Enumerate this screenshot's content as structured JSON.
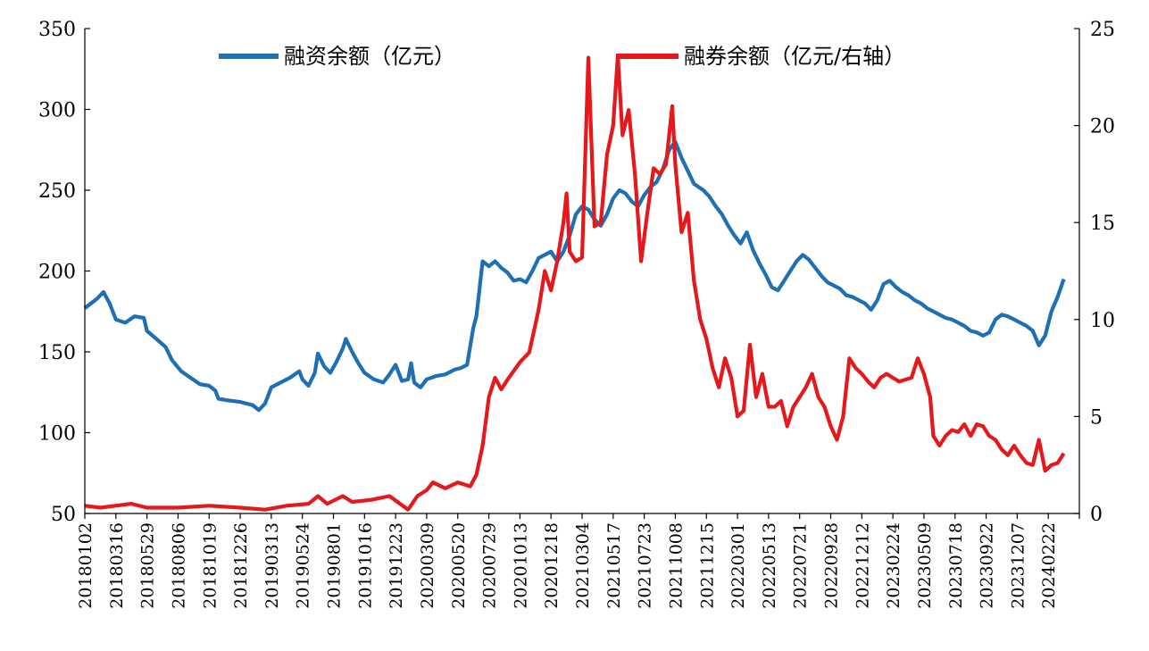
{
  "chart_data": {
    "type": "line",
    "title": "",
    "grid": false,
    "legend_position": "top",
    "y_left": {
      "min": 50,
      "max": 350,
      "ticks": [
        50,
        100,
        150,
        200,
        250,
        300,
        350
      ]
    },
    "y_right": {
      "min": 0,
      "max": 25,
      "ticks": [
        0,
        5,
        10,
        15,
        20,
        25
      ]
    },
    "x_tick_labels": [
      "20180102",
      "20180316",
      "20180529",
      "20180806",
      "20181019",
      "20181226",
      "20190313",
      "20190524",
      "20190801",
      "20191016",
      "20191223",
      "20200309",
      "20200520",
      "20200729",
      "20201013",
      "20201218",
      "20210304",
      "20210517",
      "20210723",
      "20211008",
      "20211215",
      "20220301",
      "20220513",
      "20220721",
      "20220928",
      "20221212",
      "20230224",
      "20230509",
      "20230718",
      "20230922",
      "20231207",
      "20240222"
    ],
    "series": [
      {
        "name": "融资余额（亿元）",
        "axis": "left",
        "color": "#1f6fb5",
        "points": [
          [
            0,
            177
          ],
          [
            0.2,
            180
          ],
          [
            0.4,
            183
          ],
          [
            0.6,
            187
          ],
          [
            0.8,
            180
          ],
          [
            1,
            170
          ],
          [
            1.3,
            168
          ],
          [
            1.6,
            172
          ],
          [
            1.9,
            171
          ],
          [
            2,
            163
          ],
          [
            2.3,
            158
          ],
          [
            2.6,
            153
          ],
          [
            2.8,
            145
          ],
          [
            3.1,
            138
          ],
          [
            3.4,
            134
          ],
          [
            3.7,
            130
          ],
          [
            4,
            129
          ],
          [
            4.2,
            126
          ],
          [
            4.3,
            121
          ],
          [
            4.6,
            120
          ],
          [
            5,
            119
          ],
          [
            5.4,
            117
          ],
          [
            5.6,
            114
          ],
          [
            5.8,
            118
          ],
          [
            6,
            128
          ],
          [
            6.3,
            131
          ],
          [
            6.6,
            134
          ],
          [
            6.9,
            138
          ],
          [
            7,
            133
          ],
          [
            7.2,
            129
          ],
          [
            7.4,
            137
          ],
          [
            7.5,
            149
          ],
          [
            7.7,
            141
          ],
          [
            7.9,
            137
          ],
          [
            8.1,
            144
          ],
          [
            8.3,
            152
          ],
          [
            8.4,
            158
          ],
          [
            8.6,
            150
          ],
          [
            8.8,
            143
          ],
          [
            9,
            137
          ],
          [
            9.3,
            133
          ],
          [
            9.6,
            131
          ],
          [
            9.8,
            136
          ],
          [
            10,
            142
          ],
          [
            10.2,
            132
          ],
          [
            10.4,
            133
          ],
          [
            10.5,
            143
          ],
          [
            10.6,
            131
          ],
          [
            10.8,
            128
          ],
          [
            11,
            133
          ],
          [
            11.3,
            135
          ],
          [
            11.6,
            136
          ],
          [
            11.9,
            139
          ],
          [
            12.1,
            140
          ],
          [
            12.3,
            142
          ],
          [
            12.5,
            165
          ],
          [
            12.6,
            172
          ],
          [
            12.8,
            206
          ],
          [
            13,
            203
          ],
          [
            13.2,
            206
          ],
          [
            13.4,
            202
          ],
          [
            13.6,
            199
          ],
          [
            13.8,
            194
          ],
          [
            14,
            195
          ],
          [
            14.2,
            193
          ],
          [
            14.4,
            200
          ],
          [
            14.6,
            208
          ],
          [
            14.8,
            210
          ],
          [
            15,
            212
          ],
          [
            15.2,
            206
          ],
          [
            15.4,
            212
          ],
          [
            15.6,
            222
          ],
          [
            15.8,
            235
          ],
          [
            16,
            240
          ],
          [
            16.2,
            238
          ],
          [
            16.4,
            232
          ],
          [
            16.6,
            228
          ],
          [
            16.8,
            235
          ],
          [
            17,
            245
          ],
          [
            17.2,
            250
          ],
          [
            17.4,
            248
          ],
          [
            17.6,
            243
          ],
          [
            17.8,
            240
          ],
          [
            18,
            247
          ],
          [
            18.2,
            252
          ],
          [
            18.4,
            255
          ],
          [
            18.6,
            263
          ],
          [
            18.8,
            275
          ],
          [
            19,
            280
          ],
          [
            19.2,
            270
          ],
          [
            19.4,
            262
          ],
          [
            19.6,
            254
          ],
          [
            19.9,
            250
          ],
          [
            20.1,
            246
          ],
          [
            20.3,
            240
          ],
          [
            20.5,
            235
          ],
          [
            20.7,
            228
          ],
          [
            20.9,
            222
          ],
          [
            21.1,
            217
          ],
          [
            21.3,
            224
          ],
          [
            21.5,
            213
          ],
          [
            21.7,
            205
          ],
          [
            21.9,
            198
          ],
          [
            22.1,
            190
          ],
          [
            22.3,
            188
          ],
          [
            22.5,
            194
          ],
          [
            22.7,
            200
          ],
          [
            22.9,
            206
          ],
          [
            23.1,
            210
          ],
          [
            23.3,
            207
          ],
          [
            23.5,
            202
          ],
          [
            23.7,
            197
          ],
          [
            23.9,
            193
          ],
          [
            24.1,
            191
          ],
          [
            24.3,
            189
          ],
          [
            24.5,
            185
          ],
          [
            24.7,
            184
          ],
          [
            24.9,
            182
          ],
          [
            25.1,
            180
          ],
          [
            25.3,
            176
          ],
          [
            25.5,
            182
          ],
          [
            25.7,
            192
          ],
          [
            25.9,
            194
          ],
          [
            26.1,
            190
          ],
          [
            26.3,
            187
          ],
          [
            26.5,
            185
          ],
          [
            26.7,
            182
          ],
          [
            26.9,
            180
          ],
          [
            27.1,
            177
          ],
          [
            27.3,
            175
          ],
          [
            27.5,
            173
          ],
          [
            27.7,
            171
          ],
          [
            27.9,
            170
          ],
          [
            28.1,
            168
          ],
          [
            28.3,
            166
          ],
          [
            28.5,
            163
          ],
          [
            28.7,
            162
          ],
          [
            28.9,
            160
          ],
          [
            29.1,
            162
          ],
          [
            29.3,
            170
          ],
          [
            29.5,
            173
          ],
          [
            29.7,
            172
          ],
          [
            29.9,
            170
          ],
          [
            30.1,
            168
          ],
          [
            30.3,
            166
          ],
          [
            30.5,
            163
          ],
          [
            30.7,
            154
          ],
          [
            30.9,
            160
          ],
          [
            31.1,
            175
          ],
          [
            31.3,
            184
          ],
          [
            31.5,
            195
          ]
        ]
      },
      {
        "name": "融券余额（亿元/右轴）",
        "axis": "right",
        "color": "#e5191c",
        "points": [
          [
            0,
            0.4
          ],
          [
            0.5,
            0.3
          ],
          [
            1,
            0.4
          ],
          [
            1.5,
            0.5
          ],
          [
            2,
            0.3
          ],
          [
            3,
            0.3
          ],
          [
            4,
            0.4
          ],
          [
            5,
            0.3
          ],
          [
            5.8,
            0.2
          ],
          [
            6.5,
            0.4
          ],
          [
            7.2,
            0.5
          ],
          [
            7.5,
            0.9
          ],
          [
            7.8,
            0.5
          ],
          [
            8.3,
            0.9
          ],
          [
            8.6,
            0.6
          ],
          [
            9.2,
            0.7
          ],
          [
            9.8,
            0.9
          ],
          [
            10.4,
            0.2
          ],
          [
            10.7,
            0.9
          ],
          [
            11,
            1.2
          ],
          [
            11.2,
            1.6
          ],
          [
            11.6,
            1.3
          ],
          [
            12,
            1.6
          ],
          [
            12.4,
            1.4
          ],
          [
            12.6,
            2.0
          ],
          [
            12.8,
            3.5
          ],
          [
            13,
            6.0
          ],
          [
            13.2,
            7.0
          ],
          [
            13.4,
            6.4
          ],
          [
            13.6,
            6.9
          ],
          [
            14,
            7.8
          ],
          [
            14.3,
            8.3
          ],
          [
            14.6,
            10.5
          ],
          [
            14.8,
            12.5
          ],
          [
            15,
            11.5
          ],
          [
            15.2,
            13.0
          ],
          [
            15.4,
            15.0
          ],
          [
            15.5,
            16.5
          ],
          [
            15.6,
            13.5
          ],
          [
            15.8,
            13.0
          ],
          [
            16,
            13.2
          ],
          [
            16.2,
            23.5
          ],
          [
            16.4,
            14.8
          ],
          [
            16.6,
            15.0
          ],
          [
            16.8,
            18.5
          ],
          [
            17,
            20.0
          ],
          [
            17.15,
            23.6
          ],
          [
            17.3,
            19.5
          ],
          [
            17.5,
            20.8
          ],
          [
            17.7,
            17.5
          ],
          [
            17.9,
            13.0
          ],
          [
            18.1,
            15.5
          ],
          [
            18.3,
            17.8
          ],
          [
            18.5,
            17.5
          ],
          [
            18.7,
            18.0
          ],
          [
            18.9,
            21.0
          ],
          [
            19,
            18.0
          ],
          [
            19.2,
            14.5
          ],
          [
            19.4,
            15.5
          ],
          [
            19.6,
            12.0
          ],
          [
            19.8,
            10.0
          ],
          [
            20,
            9.0
          ],
          [
            20.2,
            7.5
          ],
          [
            20.4,
            6.5
          ],
          [
            20.6,
            8.0
          ],
          [
            20.8,
            7.0
          ],
          [
            21,
            5.0
          ],
          [
            21.2,
            5.3
          ],
          [
            21.4,
            8.7
          ],
          [
            21.6,
            6.0
          ],
          [
            21.8,
            7.2
          ],
          [
            22,
            5.5
          ],
          [
            22.2,
            5.5
          ],
          [
            22.4,
            5.8
          ],
          [
            22.6,
            4.5
          ],
          [
            22.8,
            5.5
          ],
          [
            23,
            6.0
          ],
          [
            23.2,
            6.5
          ],
          [
            23.4,
            7.2
          ],
          [
            23.6,
            6.0
          ],
          [
            23.8,
            5.5
          ],
          [
            24,
            4.5
          ],
          [
            24.2,
            3.8
          ],
          [
            24.4,
            5.0
          ],
          [
            24.6,
            8.0
          ],
          [
            24.8,
            7.5
          ],
          [
            25,
            7.2
          ],
          [
            25.2,
            6.8
          ],
          [
            25.4,
            6.5
          ],
          [
            25.6,
            7.0
          ],
          [
            25.8,
            7.2
          ],
          [
            26,
            7.0
          ],
          [
            26.2,
            6.8
          ],
          [
            26.4,
            6.9
          ],
          [
            26.6,
            7.0
          ],
          [
            26.8,
            8.0
          ],
          [
            27,
            7.2
          ],
          [
            27.2,
            6.0
          ],
          [
            27.3,
            4.0
          ],
          [
            27.5,
            3.5
          ],
          [
            27.7,
            4.0
          ],
          [
            27.9,
            4.3
          ],
          [
            28.1,
            4.2
          ],
          [
            28.3,
            4.6
          ],
          [
            28.5,
            4.0
          ],
          [
            28.7,
            4.6
          ],
          [
            28.9,
            4.5
          ],
          [
            29.1,
            4.0
          ],
          [
            29.3,
            3.8
          ],
          [
            29.5,
            3.3
          ],
          [
            29.7,
            3.0
          ],
          [
            29.9,
            3.5
          ],
          [
            30.1,
            3.0
          ],
          [
            30.3,
            2.6
          ],
          [
            30.5,
            2.5
          ],
          [
            30.7,
            3.8
          ],
          [
            30.9,
            2.2
          ],
          [
            31.1,
            2.5
          ],
          [
            31.3,
            2.6
          ],
          [
            31.5,
            3.1
          ]
        ]
      }
    ]
  }
}
